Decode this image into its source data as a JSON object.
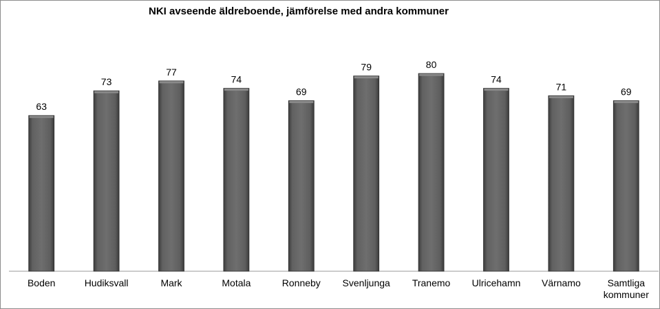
{
  "chart_data": {
    "type": "bar",
    "title": "NKI avseende äldreboende, jämförelse med andra kommuner",
    "categories": [
      "Boden",
      "Hudiksvall",
      "Mark",
      "Motala",
      "Ronneby",
      "Svenljunga",
      "Tranemo",
      "Ulricehamn",
      "Värnamo",
      "Samtliga kommuner"
    ],
    "values": [
      63,
      73,
      77,
      74,
      69,
      79,
      80,
      74,
      71,
      69
    ],
    "data_labels": [
      "63",
      "73",
      "77",
      "74",
      "69",
      "79",
      "80",
      "74",
      "71",
      "69"
    ],
    "xlabel": "",
    "ylabel": "",
    "ylim": [
      0,
      100
    ],
    "grid": false,
    "legend": "none",
    "bar_color": "#6e6e6e"
  }
}
